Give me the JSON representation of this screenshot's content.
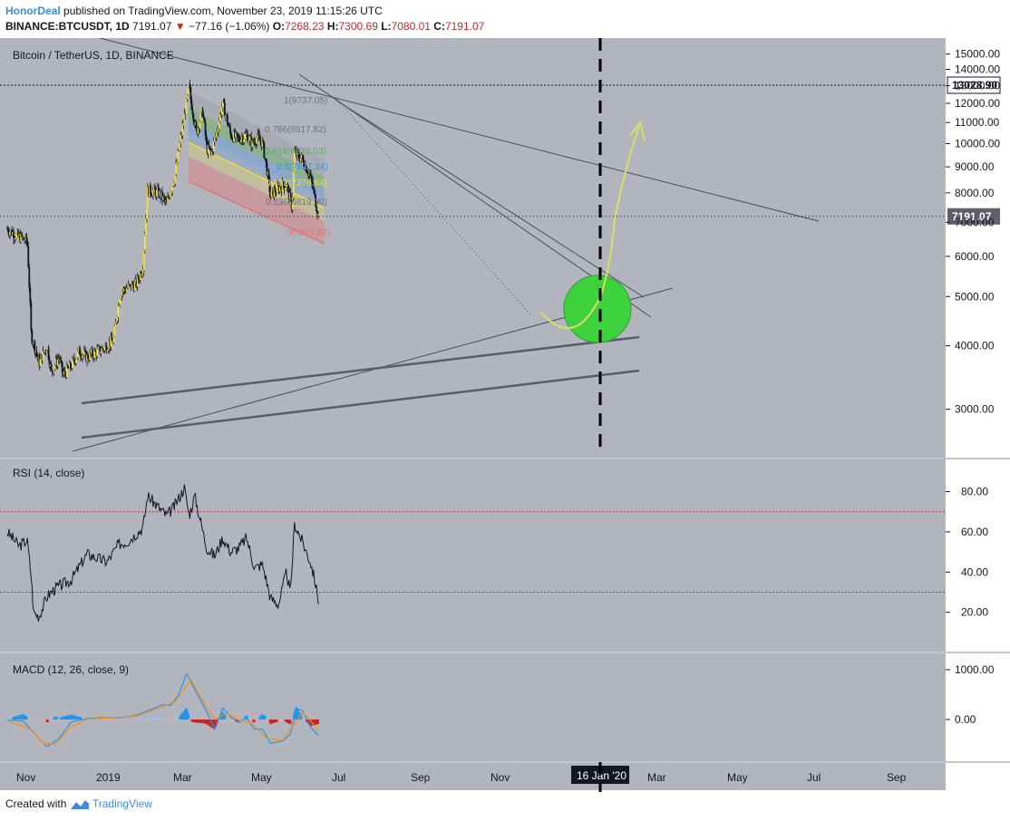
{
  "header": {
    "author": "HonorDeal",
    "published": "published on TradingView.com, November 23, 2019 11:15:26 UTC",
    "symbol": "BINANCE:BTCUSDT, 1D",
    "last": "7191.07",
    "change": "−77.16 (−1.06%)",
    "o_label": "O:",
    "o": "7268.23",
    "h_label": "H:",
    "h": "7300.69",
    "l_label": "L:",
    "l": "7080.01",
    "c_label": "C:",
    "c": "7191.07"
  },
  "footer": {
    "created": "Created with",
    "brand": "TradingView"
  },
  "colors": {
    "pane_bg": "#b2b5be",
    "candle": "#f5e23a",
    "fib_red": "#e57373",
    "fib_yellow": "#f0dc3c",
    "fib_blue": "#3d8ee6",
    "fib_green": "#5cae5c",
    "fib_grey": "#9ea0a8",
    "target_circle": "#3fd23f",
    "arrow": "#d8e060",
    "rsi_band": "#c62828",
    "macd_line": "#2196f3",
    "signal_line": "#ff8c00"
  },
  "chart_data": {
    "type": "candlestick",
    "price_pane": {
      "title": "Bitcoin / TetherUS, 1D, BINANCE",
      "y_ticks": [
        "15000.00",
        "14000.00",
        "13000.00",
        "12000.00",
        "11000.00",
        "10000.00",
        "9000.00",
        "8000.00",
        "7000.00",
        "6000.00",
        "5000.00",
        "4000.00",
        "3000.00"
      ],
      "last_price_label": "7191.07",
      "target_label": "13028.90",
      "closes": [
        [
          0,
          6800
        ],
        [
          0.12,
          6580
        ],
        [
          0.25,
          6430
        ],
        [
          0.3,
          4200
        ],
        [
          0.4,
          3700
        ],
        [
          0.5,
          4000
        ],
        [
          0.55,
          3550
        ],
        [
          0.65,
          3800
        ],
        [
          0.7,
          3500
        ],
        [
          0.8,
          3650
        ],
        [
          0.9,
          3900
        ],
        [
          1.0,
          3800
        ],
        [
          1.2,
          3950
        ],
        [
          1.33,
          4100
        ],
        [
          1.42,
          5100
        ],
        [
          1.5,
          5200
        ],
        [
          1.62,
          5300
        ],
        [
          1.7,
          5700
        ],
        [
          1.76,
          8100
        ],
        [
          1.9,
          8000
        ],
        [
          2.0,
          7600
        ],
        [
          2.1,
          8600
        ],
        [
          2.2,
          10800
        ],
        [
          2.28,
          13000
        ],
        [
          2.3,
          12200
        ],
        [
          2.37,
          10500
        ],
        [
          2.45,
          11600
        ],
        [
          2.5,
          9800
        ],
        [
          2.56,
          9600
        ],
        [
          2.63,
          10600
        ],
        [
          2.7,
          12000
        ],
        [
          2.8,
          10400
        ],
        [
          2.9,
          10200
        ],
        [
          3.0,
          10400
        ],
        [
          3.07,
          10000
        ],
        [
          3.13,
          10300
        ],
        [
          3.2,
          10000
        ],
        [
          3.3,
          7900
        ],
        [
          3.4,
          8200
        ],
        [
          3.5,
          8300
        ],
        [
          3.57,
          7500
        ],
        [
          3.6,
          9600
        ],
        [
          3.7,
          9300
        ],
        [
          3.8,
          8600
        ],
        [
          3.87,
          7600
        ],
        [
          3.9,
          7191
        ]
      ],
      "fib_levels": [
        {
          "ratio": "1",
          "label": "1(9737.05)"
        },
        {
          "ratio": "0.786",
          "label": "0.786(8917.82)"
        },
        {
          "ratio": "0.618",
          "label": "0.618(8278.03)"
        },
        {
          "ratio": "0.5",
          "label": "0.5(7827.34)"
        },
        {
          "ratio": "0.382",
          "label": "0.382(7376.64)"
        },
        {
          "ratio": "0.236",
          "label": "0.236(6819.00)"
        },
        {
          "ratio": "0",
          "label": "0(5917.62)"
        }
      ]
    },
    "rsi_pane": {
      "title": "RSI (14, close)",
      "y_ticks": [
        "80.00",
        "60.00",
        "40.00",
        "20.00"
      ],
      "bands": [
        70,
        30
      ],
      "values": [
        [
          0,
          60
        ],
        [
          0.15,
          53
        ],
        [
          0.25,
          56
        ],
        [
          0.3,
          38
        ],
        [
          0.33,
          20
        ],
        [
          0.4,
          18
        ],
        [
          0.5,
          28
        ],
        [
          0.6,
          32
        ],
        [
          0.8,
          36
        ],
        [
          1.0,
          49
        ],
        [
          1.25,
          45
        ],
        [
          1.4,
          54
        ],
        [
          1.5,
          55
        ],
        [
          1.7,
          62
        ],
        [
          1.76,
          78
        ],
        [
          1.9,
          72
        ],
        [
          2.0,
          68
        ],
        [
          2.1,
          73
        ],
        [
          2.22,
          82
        ],
        [
          2.28,
          68
        ],
        [
          2.35,
          78
        ],
        [
          2.5,
          52
        ],
        [
          2.6,
          48
        ],
        [
          2.7,
          57
        ],
        [
          2.8,
          50
        ],
        [
          2.9,
          52
        ],
        [
          3.0,
          57
        ],
        [
          3.1,
          42
        ],
        [
          3.2,
          44
        ],
        [
          3.3,
          27
        ],
        [
          3.4,
          24
        ],
        [
          3.5,
          40
        ],
        [
          3.55,
          29
        ],
        [
          3.6,
          64
        ],
        [
          3.7,
          55
        ],
        [
          3.8,
          45
        ],
        [
          3.85,
          37
        ],
        [
          3.9,
          26
        ]
      ]
    },
    "macd_pane": {
      "title": "MACD (12, 26, close, 9)",
      "y_ticks": [
        "1000.00",
        "0.00"
      ],
      "macd": [
        [
          0,
          -10
        ],
        [
          0.2,
          -30
        ],
        [
          0.35,
          -300
        ],
        [
          0.5,
          -550
        ],
        [
          0.65,
          -380
        ],
        [
          0.8,
          -50
        ],
        [
          1.0,
          20
        ],
        [
          1.2,
          40
        ],
        [
          1.4,
          30
        ],
        [
          1.6,
          80
        ],
        [
          1.8,
          200
        ],
        [
          1.95,
          300
        ],
        [
          2.05,
          280
        ],
        [
          2.15,
          500
        ],
        [
          2.25,
          930
        ],
        [
          2.35,
          600
        ],
        [
          2.5,
          160
        ],
        [
          2.6,
          -200
        ],
        [
          2.7,
          240
        ],
        [
          2.8,
          50
        ],
        [
          2.9,
          -60
        ],
        [
          3.0,
          40
        ],
        [
          3.1,
          -200
        ],
        [
          3.2,
          -190
        ],
        [
          3.3,
          -480
        ],
        [
          3.45,
          -430
        ],
        [
          3.55,
          -300
        ],
        [
          3.62,
          220
        ],
        [
          3.7,
          180
        ],
        [
          3.8,
          -150
        ],
        [
          3.9,
          -320
        ]
      ],
      "signal": [
        [
          0,
          -20
        ],
        [
          0.3,
          -200
        ],
        [
          0.45,
          -480
        ],
        [
          0.6,
          -500
        ],
        [
          0.8,
          -150
        ],
        [
          1.0,
          10
        ],
        [
          1.3,
          35
        ],
        [
          1.6,
          60
        ],
        [
          1.9,
          230
        ],
        [
          2.1,
          350
        ],
        [
          2.3,
          800
        ],
        [
          2.45,
          380
        ],
        [
          2.6,
          0
        ],
        [
          2.75,
          120
        ],
        [
          2.9,
          -10
        ],
        [
          3.05,
          -60
        ],
        [
          3.25,
          -380
        ],
        [
          3.45,
          -420
        ],
        [
          3.6,
          -90
        ],
        [
          3.7,
          140
        ],
        [
          3.8,
          -20
        ],
        [
          3.9,
          -230
        ]
      ]
    },
    "x_ticks": [
      "Nov",
      "2019",
      "Mar",
      "May",
      "Jul",
      "Sep",
      "Nov",
      "Jan",
      "Mar",
      "May",
      "Jul",
      "Sep"
    ],
    "time_label": "16 Jan '20"
  }
}
